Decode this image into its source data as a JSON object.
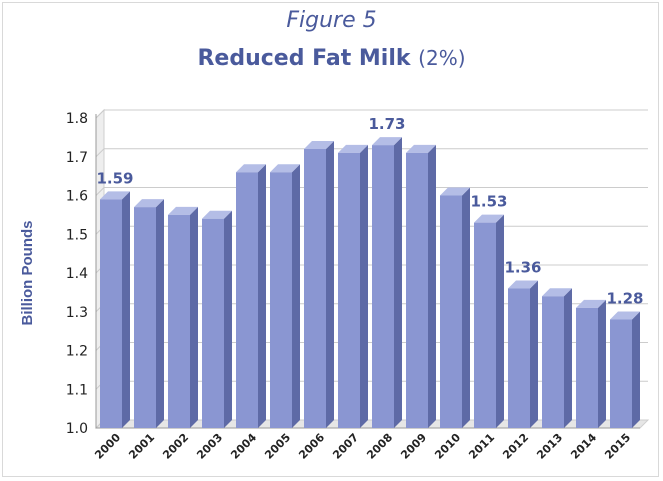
{
  "chart_data": {
    "type": "bar",
    "figure_label": "Figure 5",
    "title": "Reduced Fat Milk",
    "title_suffix": "(2%)",
    "xlabel": "",
    "ylabel": "Billion Pounds",
    "ylim": [
      1.0,
      1.8
    ],
    "yticks": [
      "1.0",
      "1.1",
      "1.2",
      "1.3",
      "1.4",
      "1.5",
      "1.6",
      "1.7",
      "1.8"
    ],
    "grid": true,
    "legend": "none",
    "bar_color": "#8a96d2",
    "categories": [
      "2000",
      "2001",
      "2002",
      "2003",
      "2004",
      "2005",
      "2006",
      "2007",
      "2008",
      "2009",
      "2010",
      "2011",
      "2012",
      "2013",
      "2014",
      "2015"
    ],
    "values": [
      1.59,
      1.57,
      1.55,
      1.54,
      1.66,
      1.66,
      1.72,
      1.71,
      1.73,
      1.71,
      1.6,
      1.53,
      1.36,
      1.34,
      1.31,
      1.28
    ],
    "data_labels": [
      {
        "category": "2000",
        "text": "1.59"
      },
      {
        "category": "2008",
        "text": "1.73"
      },
      {
        "category": "2011",
        "text": "1.53"
      },
      {
        "category": "2012",
        "text": "1.36"
      },
      {
        "category": "2015",
        "text": "1.28"
      }
    ]
  }
}
